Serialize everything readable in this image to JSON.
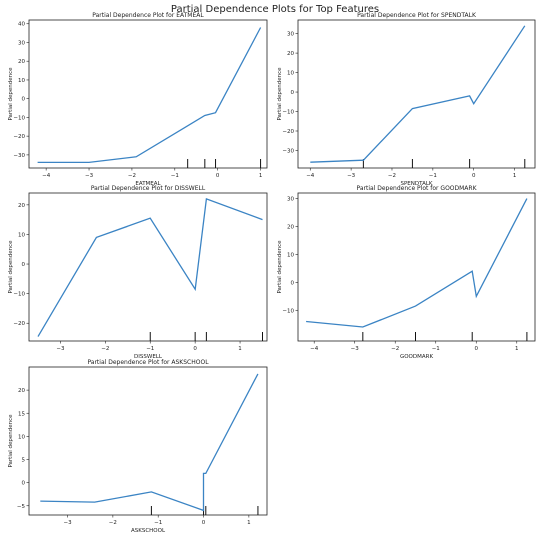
{
  "figure": {
    "title": "Partial Dependence Plots for Top Features"
  },
  "colors": {
    "line": "#3b84c4"
  },
  "chart_data": [
    {
      "type": "line",
      "title": "Partial Dependence Plot for EATMEAL",
      "xlabel": "EATMEAL",
      "ylabel": "Partial dependence",
      "xlim": [
        -4.4,
        1.15
      ],
      "ylim": [
        -37,
        42
      ],
      "xticks": [
        -4,
        -3,
        -2,
        -1,
        0,
        1
      ],
      "yticks": [
        -30,
        -20,
        -10,
        0,
        10,
        20,
        30,
        40
      ],
      "x": [
        -4.2,
        -3.0,
        -1.9,
        -0.3,
        -0.05,
        1.0
      ],
      "y": [
        -34,
        -34,
        -31,
        -9,
        -7.5,
        38
      ],
      "rug": [
        -0.7,
        -0.3,
        -0.05,
        1.0
      ]
    },
    {
      "type": "line",
      "title": "Partial Dependence Plot for SPENDTALK",
      "xlabel": "SPENDTALK",
      "ylabel": "Partial dependence",
      "xlim": [
        -4.3,
        1.5
      ],
      "ylim": [
        -39,
        37
      ],
      "xticks": [
        -4,
        -3,
        -2,
        -1,
        0,
        1
      ],
      "yticks": [
        -30,
        -20,
        -10,
        0,
        10,
        20,
        30
      ],
      "x": [
        -4.0,
        -2.7,
        -1.5,
        -0.1,
        0.0,
        1.25
      ],
      "y": [
        -36,
        -35,
        -8.5,
        -2,
        -6,
        34
      ],
      "rug": [
        -2.7,
        -1.5,
        -0.1,
        1.25
      ]
    },
    {
      "type": "line",
      "title": "Partial Dependence Plot for DISSWELL",
      "xlabel": "DISSWELL",
      "ylabel": "Partial dependence",
      "xlim": [
        -3.7,
        1.6
      ],
      "ylim": [
        -26,
        24
      ],
      "xticks": [
        -3,
        -2,
        -1,
        0,
        1
      ],
      "yticks": [
        -20,
        -10,
        0,
        10,
        20
      ],
      "x": [
        -3.5,
        -2.2,
        -1.0,
        0.0,
        0.25,
        1.5
      ],
      "y": [
        -24.5,
        9,
        15.5,
        -8.5,
        22,
        15
      ],
      "rug": [
        -1.0,
        0.0,
        0.25,
        1.5
      ]
    },
    {
      "type": "line",
      "title": "Partial Dependence Plot for GOODMARK",
      "xlabel": "GOODMARK",
      "ylabel": "Partial dependence",
      "xlim": [
        -4.4,
        1.45
      ],
      "ylim": [
        -21,
        32
      ],
      "xticks": [
        -4,
        -3,
        -2,
        -1,
        0,
        1
      ],
      "yticks": [
        -10,
        0,
        10,
        20,
        30
      ],
      "x": [
        -4.2,
        -2.8,
        -1.5,
        -0.1,
        0.0,
        1.25
      ],
      "y": [
        -14,
        -16,
        -8.5,
        4,
        -5,
        30
      ],
      "rug": [
        -2.8,
        -1.5,
        -0.1,
        1.25
      ]
    },
    {
      "type": "line",
      "title": "Partial Dependence Plot for ASKSCHOOL",
      "xlabel": "ASKSCHOOL",
      "ylabel": "Partial dependence",
      "xlim": [
        -3.85,
        1.4
      ],
      "ylim": [
        -7,
        25
      ],
      "xticks": [
        -3,
        -2,
        -1,
        0,
        1
      ],
      "yticks": [
        -5,
        0,
        5,
        10,
        15,
        20
      ],
      "x": [
        -3.6,
        -2.4,
        -1.15,
        0.0,
        0.0,
        0.05,
        1.2
      ],
      "y": [
        -4,
        -4.2,
        -2,
        -6,
        2,
        2,
        23.5
      ],
      "rug": [
        -1.15,
        0.0,
        0.05,
        1.2
      ]
    }
  ]
}
